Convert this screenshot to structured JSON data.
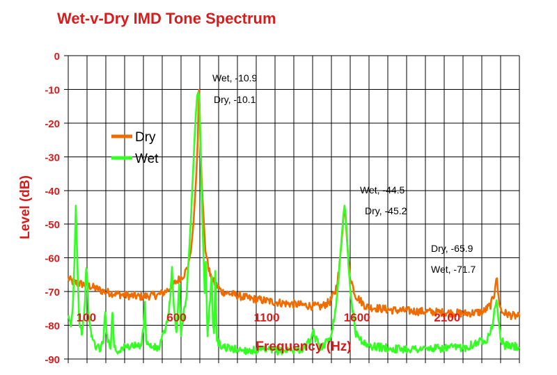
{
  "chart_data": {
    "type": "line",
    "title": "Wet-v-Dry IMD Tone Spectrum",
    "xlabel": "Frequency (Hz)",
    "ylabel": "Level (dB)",
    "xlim": [
      0,
      2500
    ],
    "ylim": [
      -90,
      0
    ],
    "x_ticks": [
      100,
      600,
      1100,
      1600,
      2100
    ],
    "y_ticks": [
      0,
      -10,
      -20,
      -30,
      -40,
      -50,
      -60,
      -70,
      -80,
      -90
    ],
    "grid": true,
    "legend_position": "left",
    "colors": {
      "Dry": "#ef6c00",
      "Wet": "#33ff22",
      "text": "#d81b1b"
    },
    "series": [
      {
        "name": "Dry",
        "x": [
          0,
          20,
          50,
          100,
          150,
          200,
          300,
          400,
          500,
          540,
          560,
          580,
          600,
          620,
          640,
          660,
          680,
          695,
          710,
          718,
          722,
          725,
          728,
          732,
          740,
          760,
          790,
          850,
          1000,
          1200,
          1400,
          1450,
          1480,
          1500,
          1515,
          1525,
          1531,
          1537,
          1545,
          1560,
          1590,
          1650,
          1800,
          2000,
          2200,
          2300,
          2340,
          2360,
          2368,
          2372,
          2376,
          2385,
          2400,
          2450,
          2500
        ],
        "y": [
          -66,
          -67,
          -67.5,
          -68,
          -69,
          -70,
          -71,
          -71.5,
          -71,
          -70,
          -69,
          -68,
          -67,
          -66,
          -65,
          -63,
          -58,
          -49,
          -35,
          -25,
          -15,
          -10.1,
          -15,
          -25,
          -38,
          -58,
          -66,
          -70,
          -72,
          -73.5,
          -74.5,
          -73,
          -70,
          -64,
          -55,
          -48,
          -45.2,
          -48,
          -55,
          -65,
          -71,
          -74.5,
          -75.5,
          -76,
          -76.5,
          -76,
          -74,
          -71,
          -67,
          -65.9,
          -67,
          -72,
          -76,
          -77,
          -77.5
        ]
      },
      {
        "name": "Wet",
        "x": [
          0,
          15,
          25,
          35,
          42,
          50,
          60,
          75,
          90,
          100,
          115,
          125,
          135,
          150,
          175,
          195,
          205,
          215,
          235,
          245,
          255,
          270,
          290,
          350,
          400,
          418,
          425,
          432,
          445,
          500,
          545,
          565,
          575,
          585,
          600,
          615,
          625,
          640,
          655,
          668,
          680,
          692,
          704,
          714,
          720,
          725,
          730,
          736,
          745,
          756,
          762,
          772,
          782,
          795,
          802,
          808,
          815,
          824,
          840,
          900,
          1000,
          1200,
          1300,
          1350,
          1360,
          1370,
          1400,
          1450,
          1480,
          1500,
          1515,
          1525,
          1531,
          1537,
          1545,
          1560,
          1590,
          1650,
          1800,
          2000,
          2200,
          2320,
          2350,
          2365,
          2373,
          2380,
          2395,
          2420,
          2500
        ],
        "y": [
          -78,
          -80,
          -75,
          -60,
          -44.5,
          -60,
          -78,
          -82,
          -76,
          -62,
          -78,
          -82,
          -84,
          -86,
          -87,
          -85,
          -75,
          -84,
          -86,
          -76,
          -86,
          -88,
          -87,
          -86,
          -86.5,
          -80,
          -74,
          -84,
          -86,
          -87,
          -80,
          -72,
          -63,
          -75,
          -82,
          -68,
          -83,
          -76,
          -71,
          -60,
          -48,
          -34,
          -20,
          -12,
          -10.9,
          -12,
          -20,
          -34,
          -52,
          -70,
          -62,
          -84,
          -75,
          -66,
          -80,
          -82,
          -65,
          -84,
          -86,
          -87,
          -87.5,
          -87.5,
          -87,
          -84,
          -82,
          -84,
          -86.5,
          -84,
          -76,
          -65,
          -54,
          -47,
          -44.5,
          -47,
          -54,
          -68,
          -82,
          -86,
          -87,
          -87,
          -86.5,
          -84,
          -80,
          -75,
          -71.7,
          -76,
          -84,
          -86,
          -86.5
        ]
      }
    ],
    "annotations": [
      {
        "text": "Wet, -10.9",
        "x": 725,
        "y": -10.9
      },
      {
        "text": "Dry, -10.1",
        "x": 725,
        "y": -10.1
      },
      {
        "text": "Wet, -44.5",
        "x": 1531,
        "y": -44.5
      },
      {
        "text": "Dry, -45.2",
        "x": 1531,
        "y": -45.2
      },
      {
        "text": "Dry, -65.9",
        "x": 2372,
        "y": -65.9
      },
      {
        "text": "Wet, -71.7",
        "x": 2373,
        "y": -71.7
      }
    ]
  }
}
